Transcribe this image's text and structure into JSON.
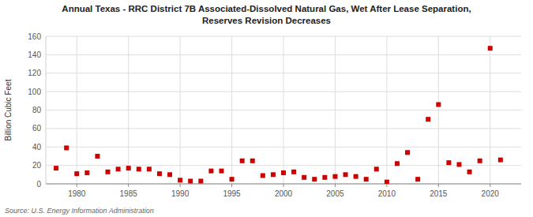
{
  "chart_data": {
    "type": "scatter",
    "title": "Annual Texas - RRC District 7B Associated-Dissolved Natural Gas, Wet After Lease Separation,",
    "subtitle": "Reserves Revision Decreases",
    "y_label": "Billion Cubic Feet",
    "annotations": [
      "Source: U.S. Energy Information Administration"
    ],
    "x": [
      1978,
      1979,
      1980,
      1981,
      1982,
      1983,
      1984,
      1985,
      1986,
      1987,
      1988,
      1989,
      1990,
      1991,
      1992,
      1993,
      1994,
      1995,
      1996,
      1997,
      1998,
      1999,
      2000,
      2001,
      2002,
      2003,
      2004,
      2005,
      2006,
      2007,
      2008,
      2009,
      2010,
      2011,
      2012,
      2013,
      2014,
      2015,
      2016,
      2017,
      2018,
      2019,
      2020,
      2021
    ],
    "values": [
      17,
      39,
      11,
      12,
      30,
      13,
      16,
      17,
      16,
      16,
      11,
      10,
      4,
      3,
      3,
      14,
      14,
      5,
      25,
      25,
      9,
      10,
      12,
      13,
      7,
      5,
      7,
      8,
      10,
      8,
      5,
      16,
      2,
      22,
      34,
      5,
      70,
      86,
      23,
      21,
      13,
      25,
      147,
      26
    ],
    "color": "#cc0000",
    "marker": "square",
    "xlim": [
      1977,
      2023
    ],
    "ylim": [
      0,
      160
    ],
    "xticks": [
      1980,
      1985,
      1990,
      1995,
      2000,
      2005,
      2010,
      2015,
      2020
    ],
    "yticks": [
      0,
      20,
      40,
      60,
      80,
      100,
      120,
      140,
      160
    ],
    "grid": true
  }
}
